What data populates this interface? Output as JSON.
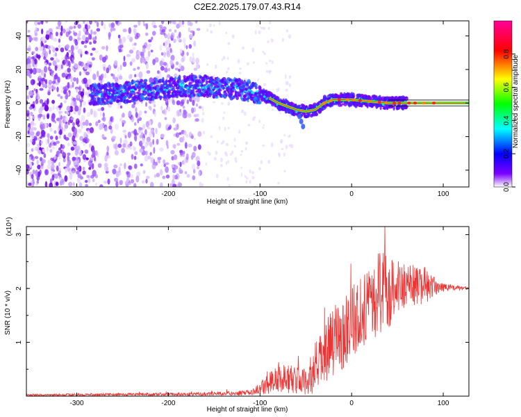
{
  "title": "C2E2.2025.179.07.43.R14",
  "chart_data": [
    {
      "type": "heatmap",
      "xlabel": "Height of straight line (km)",
      "ylabel": "Frequency (Hz)",
      "xlim": [
        -355,
        128
      ],
      "ylim": [
        -50,
        49
      ],
      "xticks": [
        -300,
        -200,
        -100,
        0,
        100
      ],
      "yticks": [
        -40,
        -20,
        0,
        20,
        40
      ],
      "colorbar": {
        "label": "Normalized spectral amplitude",
        "range": [
          0,
          1
        ],
        "ticks": [
          "0.0",
          "0.2",
          "0.4",
          "0.6",
          "0.8"
        ],
        "colormap": [
          "#ffffff",
          "#7b00ff",
          "#0000ff",
          "#00ffff",
          "#00ff00",
          "#ffff00",
          "#ff0000",
          "#ff00aa"
        ]
      },
      "ridge": [
        {
          "x": -280,
          "y": 5
        },
        {
          "x": -260,
          "y": 6
        },
        {
          "x": -240,
          "y": 7
        },
        {
          "x": -220,
          "y": 8
        },
        {
          "x": -200,
          "y": 9
        },
        {
          "x": -180,
          "y": 10
        },
        {
          "x": -160,
          "y": 10
        },
        {
          "x": -140,
          "y": 9
        },
        {
          "x": -120,
          "y": 8
        },
        {
          "x": -100,
          "y": 6
        },
        {
          "x": -90,
          "y": 3
        },
        {
          "x": -80,
          "y": 0
        },
        {
          "x": -70,
          "y": -2
        },
        {
          "x": -60,
          "y": -4
        },
        {
          "x": -50,
          "y": -5
        },
        {
          "x": -40,
          "y": -4
        },
        {
          "x": -30,
          "y": 0
        },
        {
          "x": -20,
          "y": 2
        },
        {
          "x": -10,
          "y": 2
        },
        {
          "x": 0,
          "y": 2
        },
        {
          "x": 10,
          "y": 1.5
        },
        {
          "x": 20,
          "y": 1
        },
        {
          "x": 40,
          "y": 0
        },
        {
          "x": 128,
          "y": 0
        }
      ]
    },
    {
      "type": "line",
      "xlabel": "Height of straight line (km)",
      "ylabel": "SNR (10 * v/v)",
      "y_scale_note": "(x10⁴)",
      "xlim": [
        -355,
        128
      ],
      "ylim": [
        0,
        3.15
      ],
      "xticks": [
        -300,
        -200,
        -100,
        0,
        100
      ],
      "yticks": [
        1,
        2,
        3
      ],
      "color": "#ee3333",
      "envelope": [
        {
          "x": -355,
          "mean": 0.02,
          "amp": 0.02
        },
        {
          "x": -160,
          "mean": 0.04,
          "amp": 0.03
        },
        {
          "x": -110,
          "mean": 0.06,
          "amp": 0.05
        },
        {
          "x": -100,
          "mean": 0.15,
          "amp": 0.1
        },
        {
          "x": -90,
          "mean": 0.25,
          "amp": 0.22
        },
        {
          "x": -80,
          "mean": 0.35,
          "amp": 0.3
        },
        {
          "x": -60,
          "mean": 0.3,
          "amp": 0.25
        },
        {
          "x": -50,
          "mean": 0.25,
          "amp": 0.25
        },
        {
          "x": -40,
          "mean": 0.5,
          "amp": 0.45
        },
        {
          "x": -25,
          "mean": 0.9,
          "amp": 0.6
        },
        {
          "x": -10,
          "mean": 1.2,
          "amp": 0.7
        },
        {
          "x": 0,
          "mean": 1.4,
          "amp": 0.7
        },
        {
          "x": 20,
          "mean": 1.7,
          "amp": 0.65
        },
        {
          "x": 30,
          "mean": 1.9,
          "amp": 0.8
        },
        {
          "x": 40,
          "mean": 2.0,
          "amp": 0.75
        },
        {
          "x": 55,
          "mean": 2.05,
          "amp": 0.45
        },
        {
          "x": 80,
          "mean": 2.05,
          "amp": 0.35
        },
        {
          "x": 95,
          "mean": 2.02,
          "amp": 0.1
        },
        {
          "x": 128,
          "mean": 2.0,
          "amp": 0.02
        }
      ]
    }
  ]
}
